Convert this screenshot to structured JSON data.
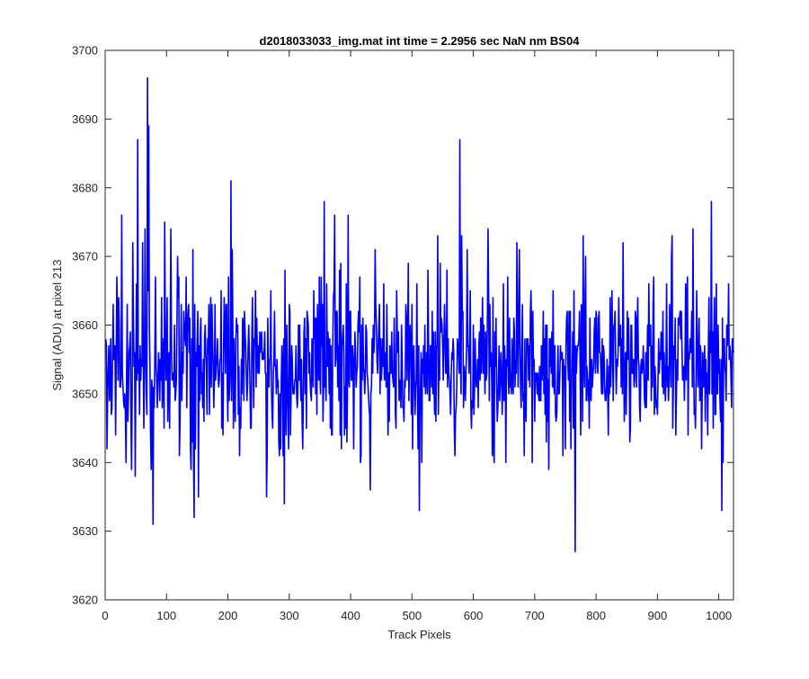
{
  "chart_data": {
    "type": "line",
    "title": "d2018033033_img.mat int time = 2.2956 sec  NaN nm BS04",
    "xlabel": "Track Pixels",
    "ylabel": "Signal (ADU) at pixel 213",
    "xlim": [
      0,
      1024
    ],
    "ylim": [
      3620,
      3700
    ],
    "xticks": [
      0,
      100,
      200,
      300,
      400,
      500,
      600,
      700,
      800,
      900,
      1000
    ],
    "yticks": [
      3620,
      3630,
      3640,
      3650,
      3660,
      3670,
      3680,
      3690,
      3700
    ],
    "grid": false,
    "legend": "none",
    "series": [
      {
        "color": "#0000ff",
        "n_points": 1024,
        "x_start": 1,
        "baseline_mean": 3654,
        "noise_std": 6,
        "features": [
          {
            "x": 3,
            "y": 3642
          },
          {
            "x": 27,
            "y": 3676
          },
          {
            "x": 34,
            "y": 3640
          },
          {
            "x": 45,
            "y": 3672
          },
          {
            "x": 49,
            "y": 3638
          },
          {
            "x": 53,
            "y": 3687
          },
          {
            "x": 61,
            "y": 3672
          },
          {
            "x": 65,
            "y": 3674
          },
          {
            "x": 69,
            "y": 3696
          },
          {
            "x": 71,
            "y": 3689
          },
          {
            "x": 78,
            "y": 3631
          },
          {
            "x": 107,
            "y": 3674
          },
          {
            "x": 140,
            "y": 3639
          },
          {
            "x": 143,
            "y": 3671
          },
          {
            "x": 145,
            "y": 3632
          },
          {
            "x": 152,
            "y": 3635
          },
          {
            "x": 205,
            "y": 3681
          },
          {
            "x": 263,
            "y": 3635
          },
          {
            "x": 292,
            "y": 3634
          },
          {
            "x": 357,
            "y": 3678
          },
          {
            "x": 374,
            "y": 3676
          },
          {
            "x": 396,
            "y": 3676
          },
          {
            "x": 432,
            "y": 3636
          },
          {
            "x": 512,
            "y": 3633
          },
          {
            "x": 542,
            "y": 3673
          },
          {
            "x": 578,
            "y": 3687
          },
          {
            "x": 581,
            "y": 3673
          },
          {
            "x": 624,
            "y": 3674
          },
          {
            "x": 671,
            "y": 3672
          },
          {
            "x": 675,
            "y": 3671
          },
          {
            "x": 696,
            "y": 3640
          },
          {
            "x": 766,
            "y": 3627
          },
          {
            "x": 779,
            "y": 3673
          },
          {
            "x": 783,
            "y": 3670
          },
          {
            "x": 844,
            "y": 3672
          },
          {
            "x": 958,
            "y": 3674
          },
          {
            "x": 988,
            "y": 3678
          },
          {
            "x": 1005,
            "y": 3633
          },
          {
            "x": 1016,
            "y": 3666
          }
        ]
      }
    ]
  }
}
